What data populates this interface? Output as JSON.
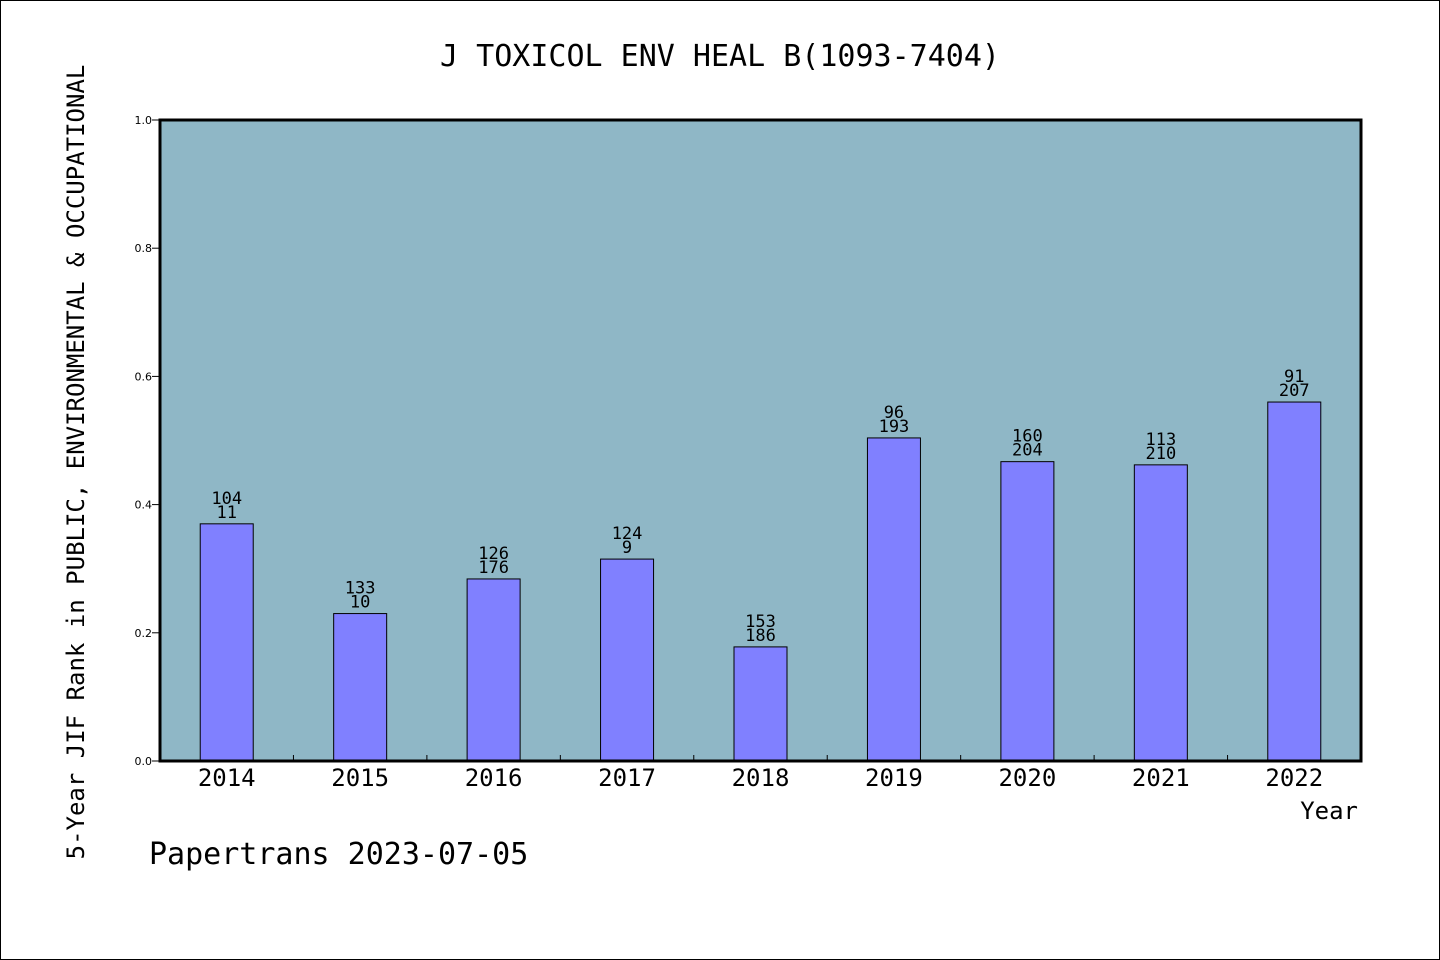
{
  "chart_data": {
    "type": "bar",
    "title": "J TOXICOL ENV HEAL B(1093-7404)",
    "xlabel": "Year",
    "ylabel": "5-Year JIF Rank in PUBLIC, ENVIRONMENTAL & OCCUPATIONAL",
    "ylim": [
      0,
      1.0
    ],
    "yticks": [
      "0.0",
      "0.2",
      "0.4",
      "0.6",
      "0.8",
      "1.0"
    ],
    "categories": [
      "2014",
      "2015",
      "2016",
      "2017",
      "2018",
      "2019",
      "2020",
      "2021",
      "2022"
    ],
    "values": [
      0.37,
      0.23,
      0.284,
      0.315,
      0.178,
      0.504,
      0.467,
      0.462,
      0.56
    ],
    "labels_top": [
      "104",
      "133",
      "126",
      "124",
      "153",
      "96",
      "160",
      "113",
      "91"
    ],
    "labels_bottom": [
      "11",
      "10",
      "176",
      "9",
      "186",
      "193",
      "204",
      "210",
      "207"
    ],
    "grid": false,
    "colors": {
      "plot_background": "#8fb7c6",
      "bar": "#8080ff"
    }
  },
  "footer": "Papertrans 2023-07-05"
}
